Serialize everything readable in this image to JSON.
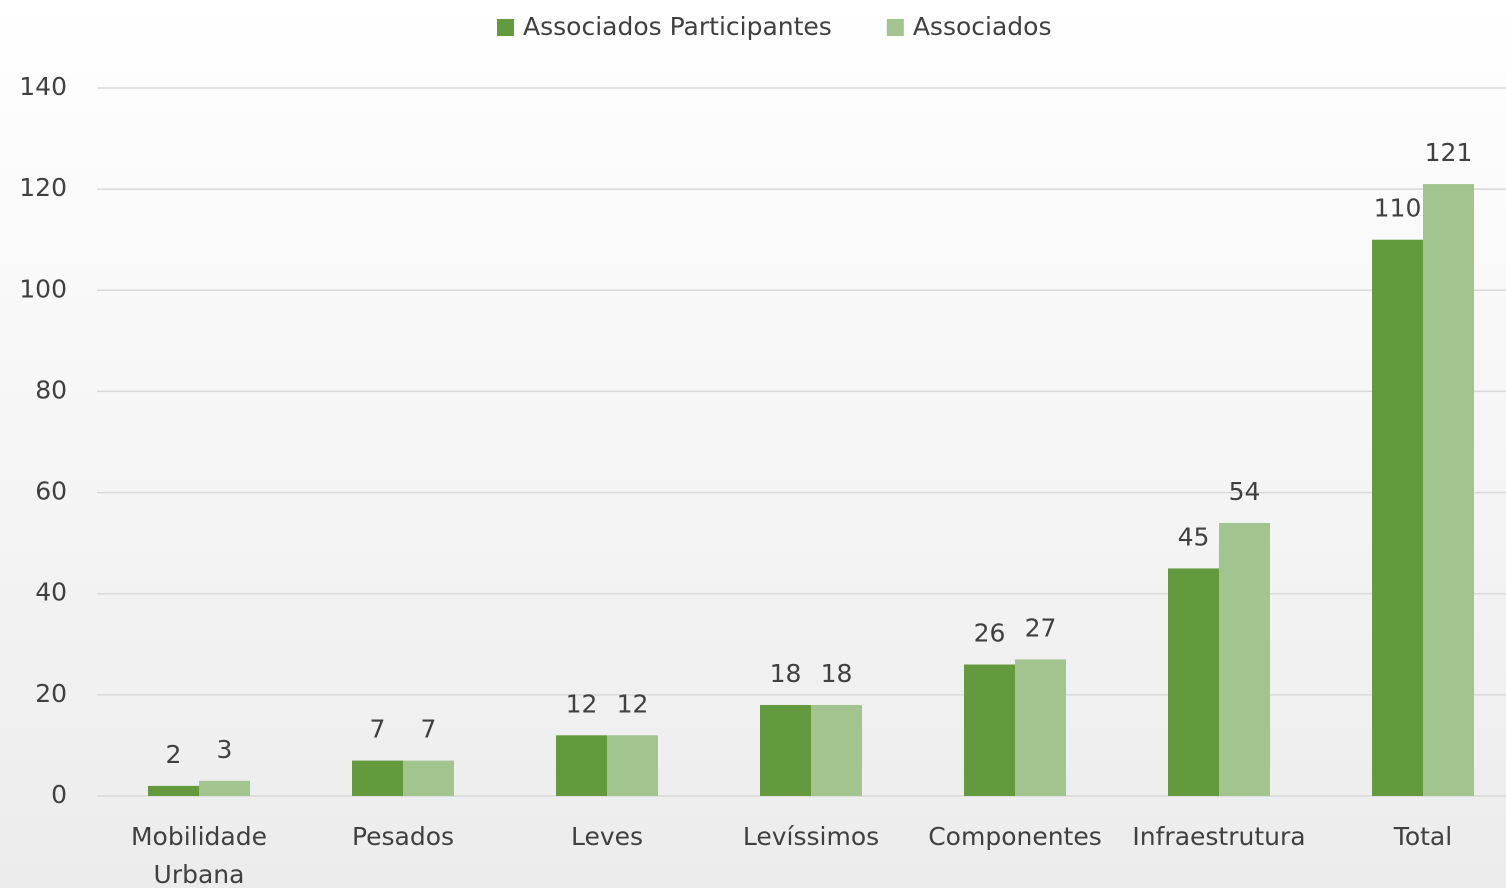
{
  "chart_data": {
    "type": "bar",
    "categories": [
      "Mobilidade Urbana",
      "Pesados",
      "Leves",
      "Levíssimos",
      "Componentes",
      "Infraestrutura",
      "Total"
    ],
    "series": [
      {
        "name": "Associados Participantes",
        "color": "#629a3d",
        "values": [
          2,
          7,
          12,
          18,
          26,
          45,
          110
        ]
      },
      {
        "name": "Associados",
        "color": "#a2c48e",
        "values": [
          3,
          7,
          12,
          18,
          27,
          54,
          121
        ]
      }
    ],
    "ylim": [
      0,
      140
    ],
    "yticks": [
      0,
      20,
      40,
      60,
      80,
      100,
      120,
      140
    ],
    "grid": true,
    "legend": "top"
  }
}
